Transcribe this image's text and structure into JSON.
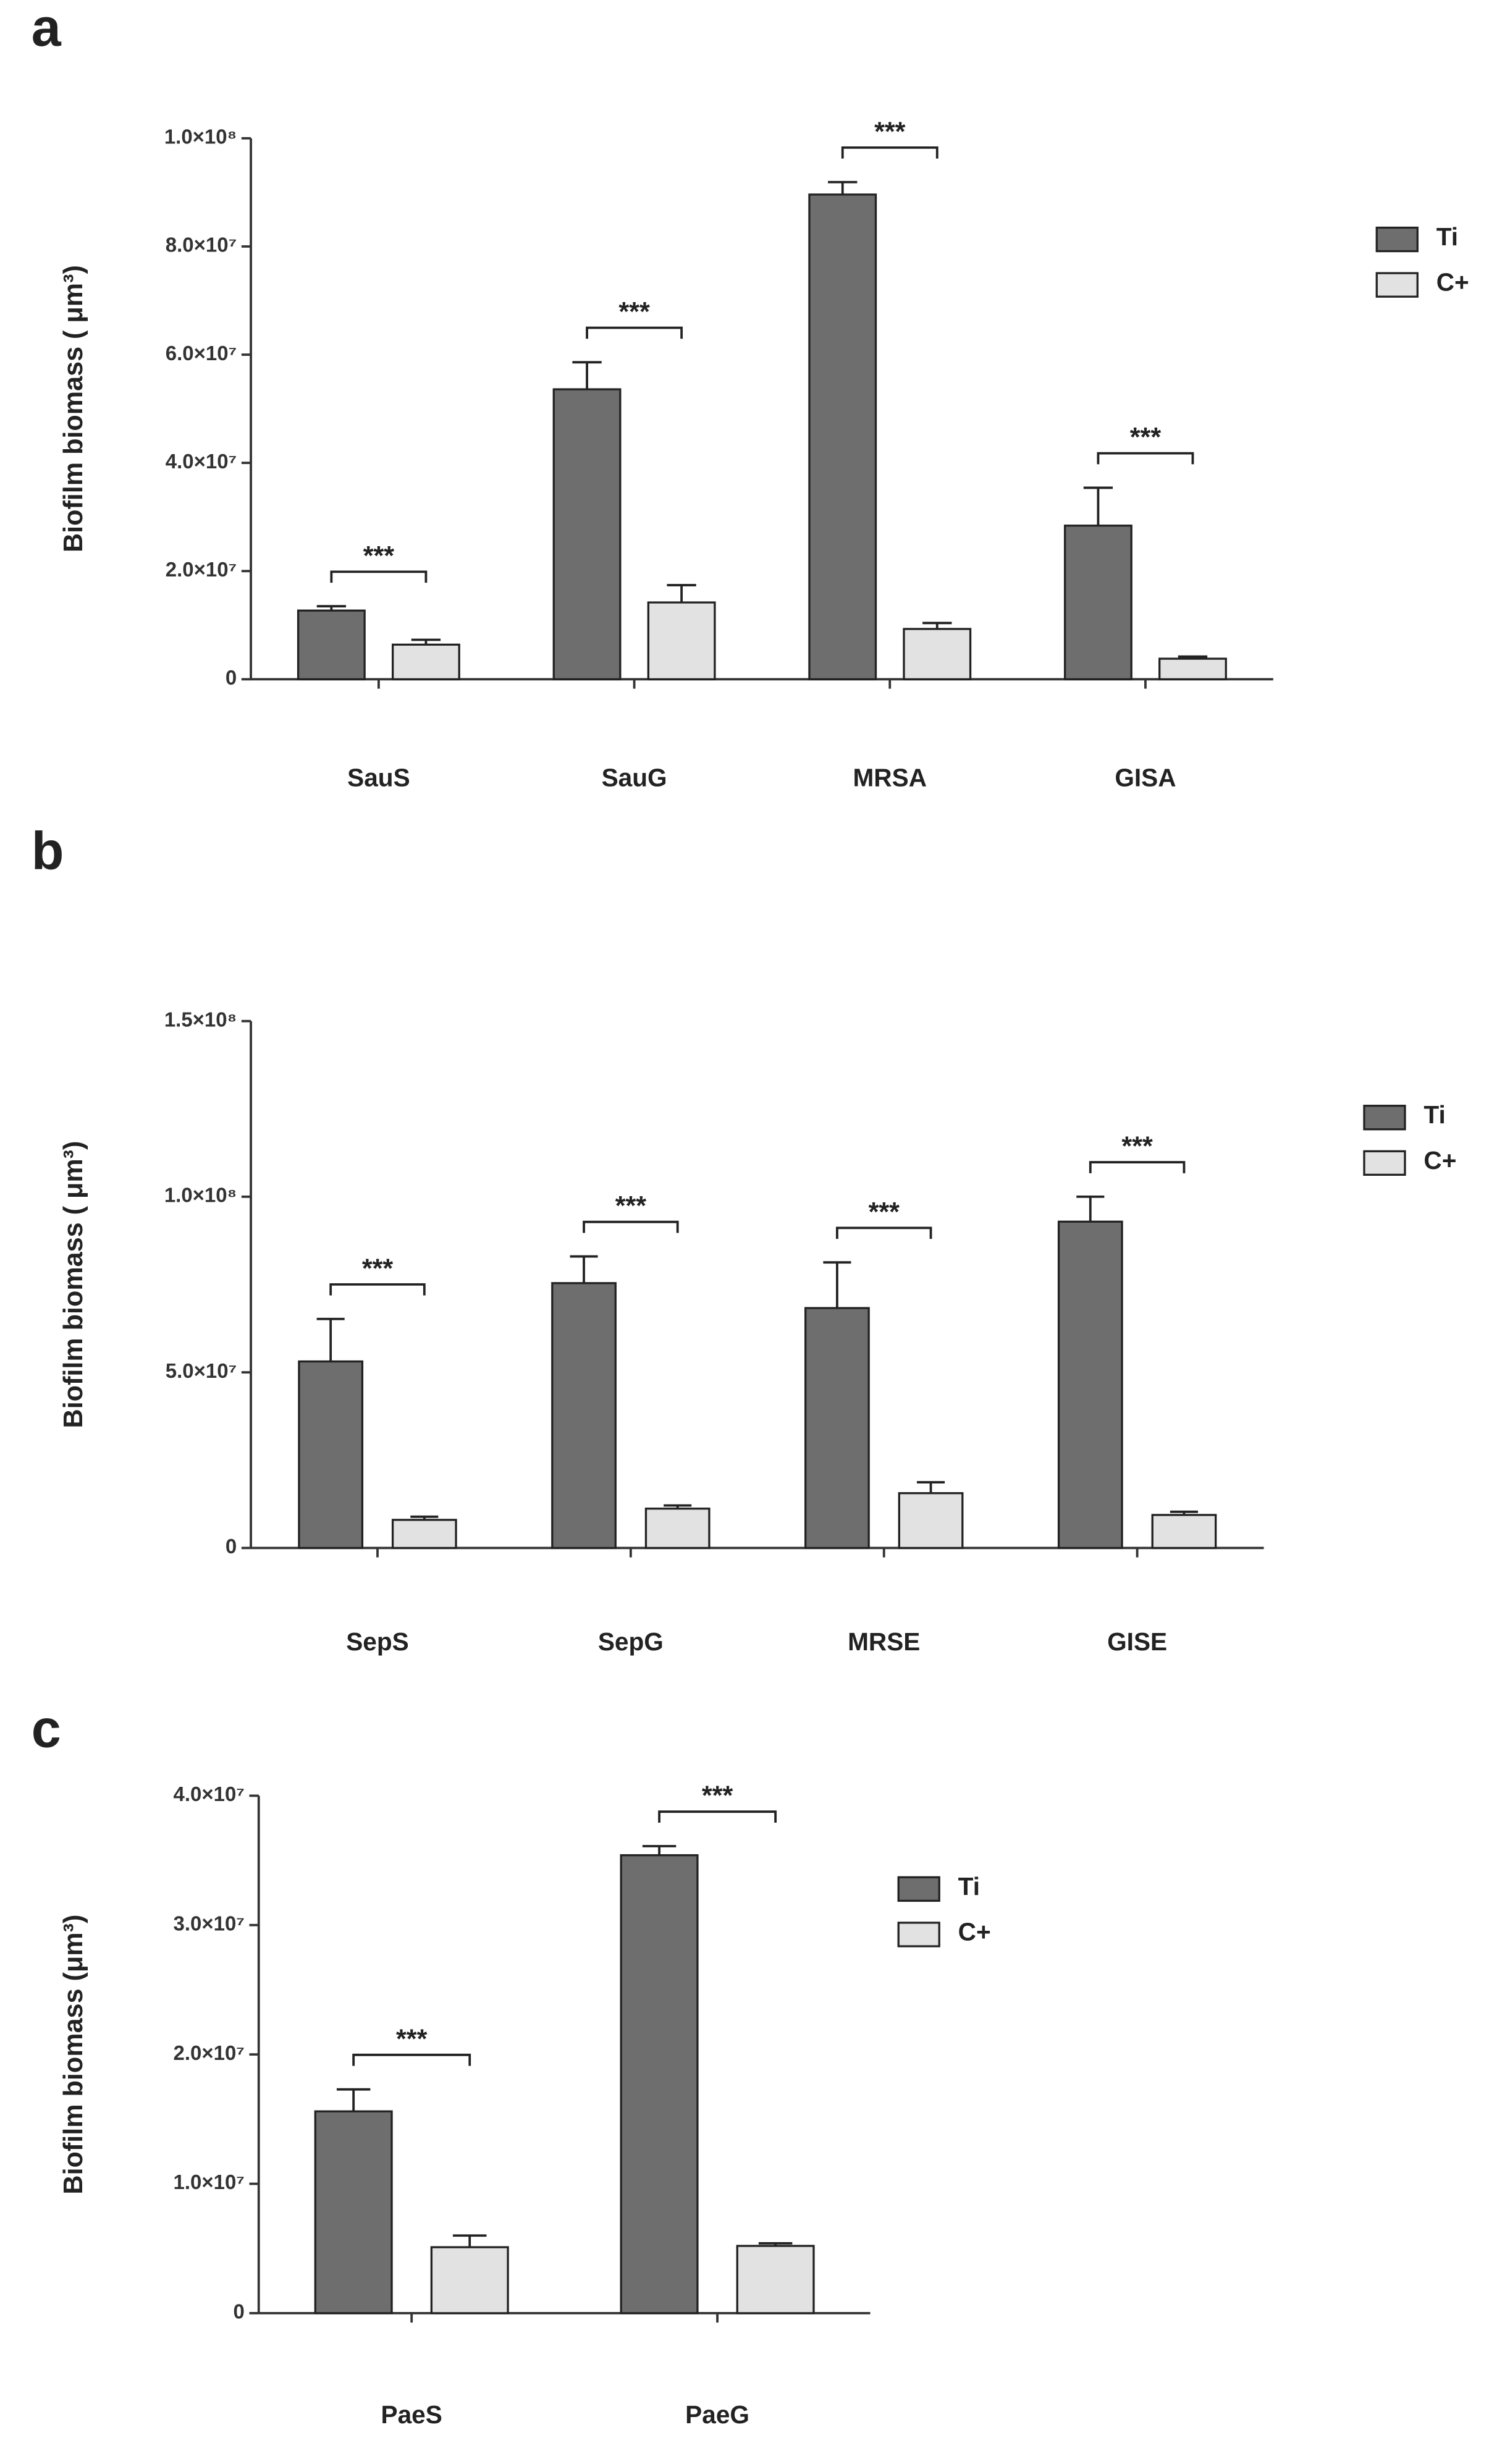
{
  "chart_data": [
    {
      "type": "bar",
      "panel": "a",
      "y_label": "Biofilm biomass ( μm³)",
      "categories": [
        "SauS",
        "SauG",
        "MRSA",
        "GISA"
      ],
      "series": [
        {
          "name": "Ti",
          "color": "#6e6e6e",
          "values": [
            12700000,
            53600000,
            89600000,
            28400000
          ],
          "errors": [
            800000,
            5000000,
            2300000,
            7000000
          ]
        },
        {
          "name": "C+",
          "color": "#e2e2e2",
          "values": [
            6400000,
            14200000,
            9300000,
            3800000
          ],
          "errors": [
            900000,
            3200000,
            1100000,
            400000
          ]
        }
      ],
      "annotations": [
        "***",
        "***",
        "***",
        "***"
      ],
      "ylim": [
        0,
        100000000
      ],
      "yticks": [
        0,
        {
          "value": 20000000,
          "label": "2.0×10⁷"
        },
        {
          "value": 40000000,
          "label": "4.0×10⁷"
        },
        {
          "value": 60000000,
          "label": "6.0×10⁷"
        },
        {
          "value": 80000000,
          "label": "8.0×10⁷"
        },
        {
          "value": 100000000,
          "label": "1.0×10⁸"
        }
      ]
    },
    {
      "type": "bar",
      "panel": "b",
      "y_label": "Biofilm biomass ( μm³)",
      "categories": [
        "SepS",
        "SepG",
        "MRSE",
        "GISE"
      ],
      "series": [
        {
          "name": "Ti",
          "color": "#6e6e6e",
          "values": [
            53100000,
            75400000,
            68300000,
            92900000
          ],
          "errors": [
            12100000,
            7600000,
            13000000,
            7100000
          ]
        },
        {
          "name": "C+",
          "color": "#e2e2e2",
          "values": [
            8000000,
            11200000,
            15600000,
            9400000
          ],
          "errors": [
            900000,
            900000,
            3100000,
            900000
          ]
        }
      ],
      "annotations": [
        "***",
        "***",
        "***",
        "***"
      ],
      "ylim": [
        0,
        150000000
      ],
      "yticks": [
        0,
        {
          "value": 50000000,
          "label": "5.0×10⁷"
        },
        {
          "value": 100000000,
          "label": "1.0×10⁸"
        },
        {
          "value": 150000000,
          "label": "1.5×10⁸"
        }
      ]
    },
    {
      "type": "bar",
      "panel": "c",
      "y_label": "Biofilm biomass (μm³)",
      "categories": [
        "PaeS",
        "PaeG"
      ],
      "series": [
        {
          "name": "Ti",
          "color": "#6e6e6e",
          "values": [
            15600000,
            35400000
          ],
          "errors": [
            1700000,
            700000
          ]
        },
        {
          "name": "C+",
          "color": "#e2e2e2",
          "values": [
            5100000,
            5200000
          ],
          "errors": [
            900000,
            200000
          ]
        }
      ],
      "annotations": [
        "***",
        "***"
      ],
      "ylim": [
        0,
        40000000
      ],
      "yticks": [
        0,
        {
          "value": 10000000,
          "label": "1.0×10⁷"
        },
        {
          "value": 20000000,
          "label": "2.0×10⁷"
        },
        {
          "value": 30000000,
          "label": "3.0×10⁷"
        },
        {
          "value": 40000000,
          "label": "4.0×10⁷"
        }
      ]
    }
  ]
}
